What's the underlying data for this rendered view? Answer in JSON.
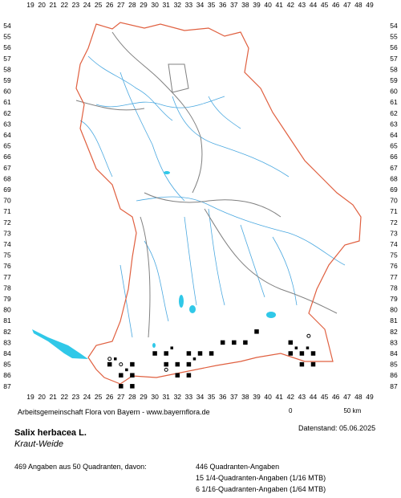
{
  "grid": {
    "x_labels": [
      "19",
      "20",
      "21",
      "22",
      "23",
      "24",
      "25",
      "26",
      "27",
      "28",
      "29",
      "30",
      "31",
      "32",
      "33",
      "34",
      "35",
      "36",
      "37",
      "38",
      "39",
      "40",
      "41",
      "42",
      "43",
      "44",
      "45",
      "46",
      "47",
      "48",
      "49"
    ],
    "y_labels": [
      "54",
      "55",
      "56",
      "57",
      "58",
      "59",
      "60",
      "61",
      "62",
      "63",
      "64",
      "65",
      "66",
      "67",
      "68",
      "69",
      "70",
      "71",
      "72",
      "73",
      "74",
      "75",
      "76",
      "77",
      "78",
      "79",
      "80",
      "81",
      "82",
      "83",
      "84",
      "85",
      "86",
      "87"
    ]
  },
  "colors": {
    "border": "#e06040",
    "region": "#808080",
    "river": "#4aa8e0",
    "lake": "#30c8e8",
    "grid_label": "#000000",
    "marker": "#000000"
  },
  "occurrences": {
    "quadrant_cells": [
      [
        26,
        85
      ],
      [
        27,
        86
      ],
      [
        27,
        87
      ],
      [
        28,
        85
      ],
      [
        28,
        86
      ],
      [
        28,
        87
      ],
      [
        30,
        84
      ],
      [
        31,
        84
      ],
      [
        31,
        85
      ],
      [
        32,
        85
      ],
      [
        33,
        84
      ],
      [
        33,
        85
      ],
      [
        34,
        84
      ],
      [
        35,
        84
      ],
      [
        36,
        83
      ],
      [
        37,
        83
      ],
      [
        38,
        83
      ],
      [
        39,
        82
      ],
      [
        42,
        83
      ],
      [
        42,
        84
      ],
      [
        43,
        84
      ],
      [
        43,
        85
      ],
      [
        44,
        84
      ],
      [
        44,
        85
      ],
      [
        32,
        86
      ],
      [
        33,
        86
      ]
    ],
    "subquadrant_cells": [
      [
        26.5,
        84.5
      ],
      [
        27.5,
        85.5
      ],
      [
        31.5,
        83.5
      ],
      [
        33.5,
        84.5
      ],
      [
        42.5,
        83.5
      ],
      [
        43.5,
        83.5
      ]
    ],
    "circle_cells": [
      [
        26,
        84.5
      ],
      [
        27,
        85
      ],
      [
        31,
        85.5
      ],
      [
        43.6,
        82.4
      ]
    ]
  },
  "text": {
    "credit": "Arbeitsgemeinschaft Flora von Bayern - www.bayernflora.de",
    "scale_left": "0",
    "scale_right": "50 km",
    "date": "Datenstand: 05.06.2025",
    "species": "Salix herbacea L.",
    "german_name": "Kraut-Weide",
    "summary": "469 Angaben aus 50 Quadranten, davon:",
    "stat1": "446 Quadranten-Angaben",
    "stat2": "15 1/4-Quadranten-Angaben (1/16 MTB)",
    "stat3": "6 1/16-Quadranten-Angaben (1/64 MTB)"
  }
}
